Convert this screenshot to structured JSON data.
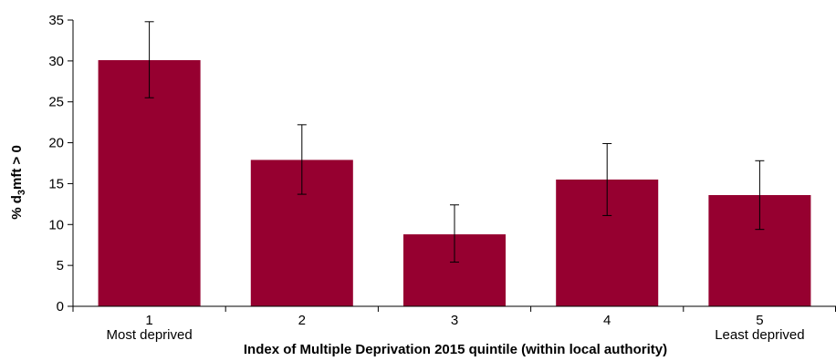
{
  "chart_data": {
    "type": "bar",
    "categories": [
      "1",
      "2",
      "3",
      "4",
      "5"
    ],
    "category_sublabels": [
      "Most deprived",
      "",
      "",
      "",
      "Least deprived"
    ],
    "values": [
      30.1,
      17.9,
      8.8,
      15.5,
      13.6
    ],
    "error_low": [
      25.5,
      13.7,
      5.4,
      11.1,
      9.4
    ],
    "error_high": [
      34.8,
      22.2,
      12.4,
      19.9,
      17.8
    ],
    "xlabel": "Index of Multiple Deprivation 2015 quintile (within local authority)",
    "ylabel_prefix": "% d",
    "ylabel_subscript": "3",
    "ylabel_suffix": "mft > 0",
    "ylim": [
      0,
      35
    ],
    "yticks": [
      0,
      5,
      10,
      15,
      20,
      25,
      30,
      35
    ],
    "grid": false,
    "legend": "none",
    "bar_color": "#960030"
  }
}
